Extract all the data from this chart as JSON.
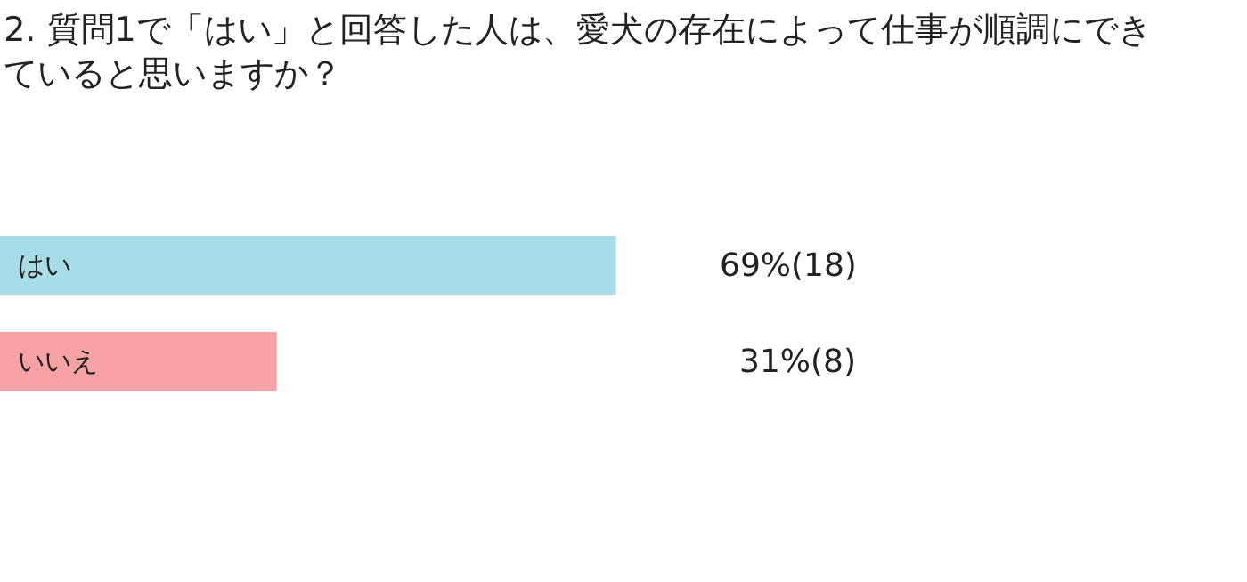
{
  "chart_data": {
    "type": "bar",
    "orientation": "horizontal",
    "title": "2. 質問1で「はい」と回答した人は、愛犬の存在によって仕事が順調にできていると思いますか？",
    "categories": [
      "はい",
      "いいえ"
    ],
    "values": [
      69,
      31
    ],
    "colors": [
      "#a8dce6",
      "#f7a3a6"
    ],
    "value_labels": [
      "69%(18)",
      "31%(8)"
    ],
    "tick_labels": false,
    "legend": false
  }
}
